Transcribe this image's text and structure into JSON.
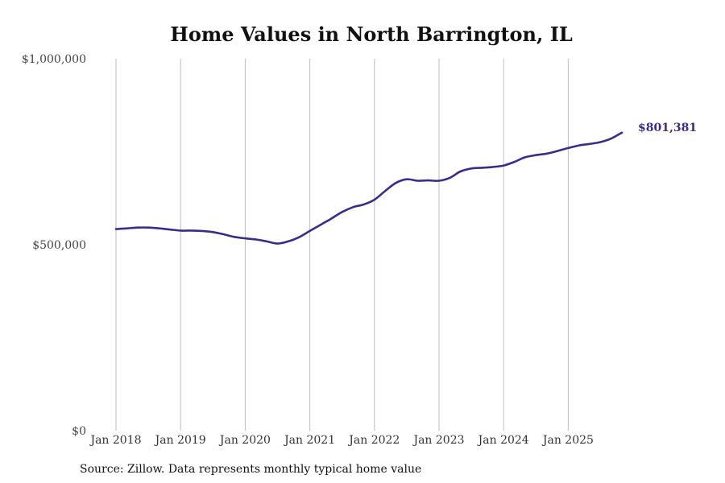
{
  "chart_data": {
    "type": "line",
    "title": "Home Values in North Barrington, IL",
    "xlabel": "",
    "ylabel": "",
    "ylim": [
      0,
      1000000
    ],
    "yticks": [
      {
        "value": 0,
        "label": "$0"
      },
      {
        "value": 500000,
        "label": "$500,000"
      },
      {
        "value": 1000000,
        "label": "$1,000,000"
      }
    ],
    "xticks": [
      {
        "value": 2018.0,
        "label": "Jan 2018"
      },
      {
        "value": 2019.0,
        "label": "Jan 2019"
      },
      {
        "value": 2020.0,
        "label": "Jan 2020"
      },
      {
        "value": 2021.0,
        "label": "Jan 2021"
      },
      {
        "value": 2022.0,
        "label": "Jan 2022"
      },
      {
        "value": 2023.0,
        "label": "Jan 2023"
      },
      {
        "value": 2024.0,
        "label": "Jan 2024"
      },
      {
        "value": 2025.0,
        "label": "Jan 2025"
      }
    ],
    "xlim": [
      2018.0,
      2026.0
    ],
    "grid": "vertical",
    "series": [
      {
        "name": "Typical home value",
        "color": "#3b2c85",
        "points": [
          [
            2018.0,
            542000
          ],
          [
            2018.17,
            544000
          ],
          [
            2018.33,
            546000
          ],
          [
            2018.5,
            546000
          ],
          [
            2018.67,
            544000
          ],
          [
            2018.83,
            541000
          ],
          [
            2019.0,
            538000
          ],
          [
            2019.17,
            538000
          ],
          [
            2019.33,
            537000
          ],
          [
            2019.5,
            534000
          ],
          [
            2019.67,
            528000
          ],
          [
            2019.83,
            521000
          ],
          [
            2020.0,
            517000
          ],
          [
            2020.17,
            514000
          ],
          [
            2020.33,
            509000
          ],
          [
            2020.5,
            503000
          ],
          [
            2020.67,
            509000
          ],
          [
            2020.83,
            520000
          ],
          [
            2021.0,
            537000
          ],
          [
            2021.17,
            554000
          ],
          [
            2021.33,
            570000
          ],
          [
            2021.5,
            588000
          ],
          [
            2021.67,
            601000
          ],
          [
            2021.83,
            608000
          ],
          [
            2022.0,
            621000
          ],
          [
            2022.17,
            645000
          ],
          [
            2022.33,
            666000
          ],
          [
            2022.5,
            676000
          ],
          [
            2022.67,
            672000
          ],
          [
            2022.83,
            673000
          ],
          [
            2023.0,
            672000
          ],
          [
            2023.17,
            680000
          ],
          [
            2023.33,
            697000
          ],
          [
            2023.5,
            705000
          ],
          [
            2023.67,
            707000
          ],
          [
            2023.83,
            709000
          ],
          [
            2024.0,
            713000
          ],
          [
            2024.17,
            723000
          ],
          [
            2024.33,
            735000
          ],
          [
            2024.5,
            741000
          ],
          [
            2024.67,
            745000
          ],
          [
            2024.83,
            752000
          ],
          [
            2025.0,
            760000
          ],
          [
            2025.17,
            767000
          ],
          [
            2025.33,
            771000
          ],
          [
            2025.5,
            776000
          ],
          [
            2025.67,
            786000
          ],
          [
            2025.83,
            801381
          ]
        ]
      }
    ],
    "annotations": [
      {
        "text": "$801,381",
        "color": "#3b2c85"
      }
    ]
  },
  "footer": {
    "source": "Source: Zillow. Data represents monthly typical home value"
  }
}
